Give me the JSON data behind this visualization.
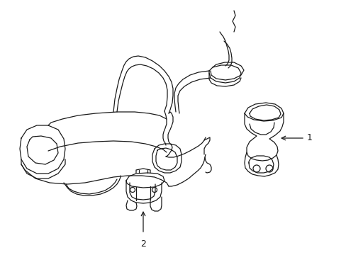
{
  "background_color": "#ffffff",
  "line_color": "#1a1a1a",
  "line_width": 0.9,
  "fig_width": 4.89,
  "fig_height": 3.6,
  "dpi": 100,
  "label_1": "1",
  "label_2": "2",
  "label_fontsize": 9
}
